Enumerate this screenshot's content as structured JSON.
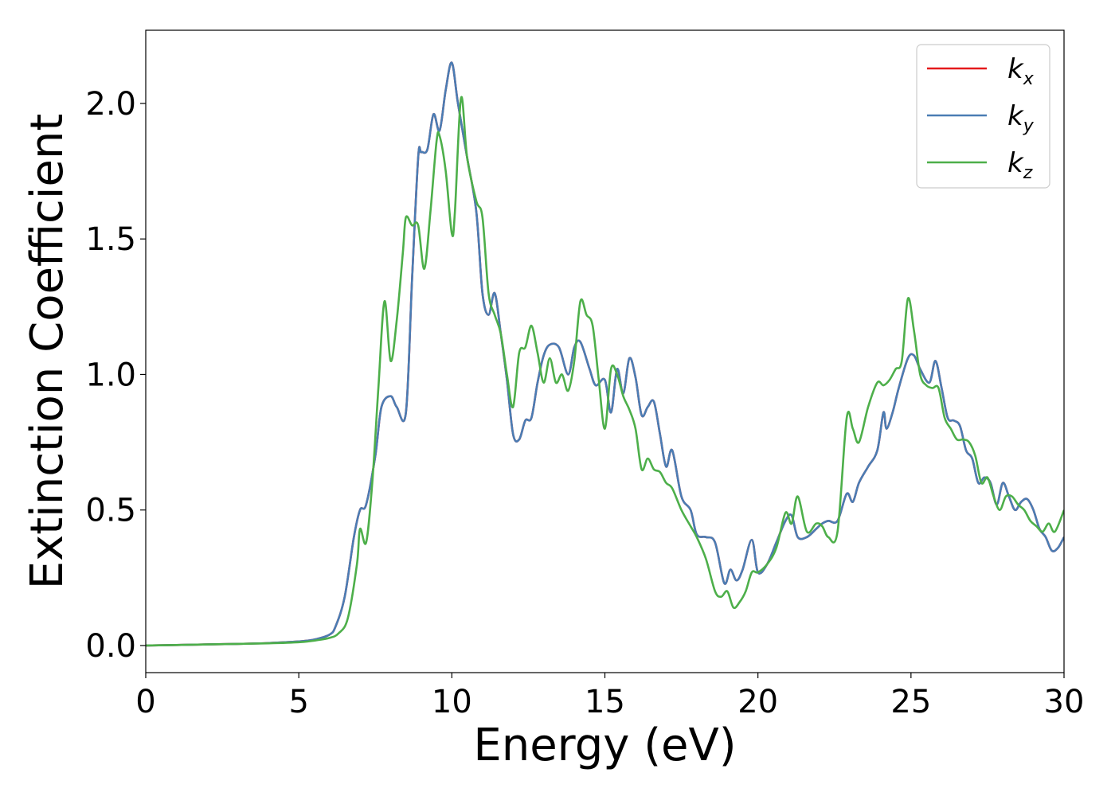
{
  "chart_data": {
    "type": "line",
    "xlabel": "Energy (eV)",
    "ylabel": "Extinction Coefficient",
    "xlim": [
      0,
      30
    ],
    "ylim": [
      -0.1,
      2.27
    ],
    "xticks": [
      0,
      5,
      10,
      15,
      20,
      25,
      30
    ],
    "yticks": [
      0.0,
      0.5,
      1.0,
      1.5,
      2.0
    ],
    "xtick_labels": [
      "0",
      "5",
      "10",
      "15",
      "20",
      "25",
      "30"
    ],
    "ytick_labels": [
      "0.0",
      "0.5",
      "1.0",
      "1.5",
      "2.0"
    ],
    "grid": false,
    "legend_position": "top-right",
    "series": [
      {
        "name": "kx",
        "legend_base": "k",
        "legend_sub": "x",
        "color": "#e41a1c",
        "x": [
          0,
          1,
          2,
          3,
          4,
          5,
          5.5,
          6,
          6.2,
          6.5,
          6.8,
          7.0,
          7.2,
          7.5,
          7.7,
          8.0,
          8.2,
          8.5,
          8.7,
          8.9,
          9.0,
          9.2,
          9.4,
          9.6,
          9.8,
          10.0,
          10.2,
          10.5,
          10.8,
          11.0,
          11.2,
          11.4,
          11.6,
          11.8,
          12.0,
          12.2,
          12.4,
          12.6,
          12.8,
          13.0,
          13.2,
          13.5,
          13.8,
          14.0,
          14.2,
          14.5,
          14.7,
          15.0,
          15.2,
          15.4,
          15.6,
          15.8,
          16.0,
          16.2,
          16.4,
          16.6,
          16.8,
          17.0,
          17.2,
          17.5,
          17.8,
          18.0,
          18.3,
          18.6,
          18.9,
          19.1,
          19.3,
          19.5,
          19.8,
          20.0,
          20.3,
          20.6,
          20.9,
          21.1,
          21.3,
          21.6,
          21.9,
          22.1,
          22.3,
          22.6,
          22.9,
          23.1,
          23.3,
          23.6,
          23.9,
          24.1,
          24.2,
          24.4,
          24.6,
          24.9,
          25.1,
          25.3,
          25.6,
          25.8,
          26.0,
          26.2,
          26.4,
          26.6,
          26.8,
          27.0,
          27.2,
          27.4,
          27.6,
          27.8,
          28.0,
          28.2,
          28.4,
          28.6,
          28.8,
          29.0,
          29.2,
          29.4,
          29.6,
          29.8,
          30.0
        ],
        "y": [
          0.0,
          0.002,
          0.004,
          0.006,
          0.009,
          0.015,
          0.022,
          0.04,
          0.07,
          0.18,
          0.4,
          0.5,
          0.52,
          0.7,
          0.88,
          0.92,
          0.88,
          0.86,
          1.35,
          1.8,
          1.82,
          1.83,
          1.96,
          1.9,
          2.05,
          2.15,
          2.0,
          1.8,
          1.6,
          1.3,
          1.22,
          1.3,
          1.15,
          0.98,
          0.78,
          0.76,
          0.83,
          0.84,
          0.97,
          1.07,
          1.11,
          1.1,
          1.0,
          1.1,
          1.12,
          1.02,
          0.96,
          0.98,
          0.86,
          1.02,
          0.93,
          1.06,
          0.99,
          0.85,
          0.88,
          0.9,
          0.78,
          0.66,
          0.72,
          0.55,
          0.5,
          0.41,
          0.4,
          0.38,
          0.23,
          0.28,
          0.24,
          0.28,
          0.39,
          0.27,
          0.3,
          0.38,
          0.46,
          0.48,
          0.4,
          0.4,
          0.43,
          0.45,
          0.46,
          0.46,
          0.56,
          0.53,
          0.6,
          0.66,
          0.72,
          0.86,
          0.8,
          0.86,
          0.95,
          1.06,
          1.07,
          1.02,
          0.97,
          1.05,
          0.95,
          0.84,
          0.83,
          0.81,
          0.72,
          0.69,
          0.6,
          0.62,
          0.6,
          0.52,
          0.6,
          0.55,
          0.5,
          0.53,
          0.54,
          0.5,
          0.43,
          0.4,
          0.35,
          0.36,
          0.4
        ]
      },
      {
        "name": "ky",
        "legend_base": "k",
        "legend_sub": "y",
        "color": "#4a7db4",
        "x": [
          0,
          1,
          2,
          3,
          4,
          5,
          5.5,
          6,
          6.2,
          6.5,
          6.8,
          7.0,
          7.2,
          7.5,
          7.7,
          8.0,
          8.2,
          8.5,
          8.7,
          8.9,
          9.0,
          9.2,
          9.4,
          9.6,
          9.8,
          10.0,
          10.2,
          10.5,
          10.8,
          11.0,
          11.2,
          11.4,
          11.6,
          11.8,
          12.0,
          12.2,
          12.4,
          12.6,
          12.8,
          13.0,
          13.2,
          13.5,
          13.8,
          14.0,
          14.2,
          14.5,
          14.7,
          15.0,
          15.2,
          15.4,
          15.6,
          15.8,
          16.0,
          16.2,
          16.4,
          16.6,
          16.8,
          17.0,
          17.2,
          17.5,
          17.8,
          18.0,
          18.3,
          18.6,
          18.9,
          19.1,
          19.3,
          19.5,
          19.8,
          20.0,
          20.3,
          20.6,
          20.9,
          21.1,
          21.3,
          21.6,
          21.9,
          22.1,
          22.3,
          22.6,
          22.9,
          23.1,
          23.3,
          23.6,
          23.9,
          24.1,
          24.2,
          24.4,
          24.6,
          24.9,
          25.1,
          25.3,
          25.6,
          25.8,
          26.0,
          26.2,
          26.4,
          26.6,
          26.8,
          27.0,
          27.2,
          27.4,
          27.6,
          27.8,
          28.0,
          28.2,
          28.4,
          28.6,
          28.8,
          29.0,
          29.2,
          29.4,
          29.6,
          29.8,
          30.0
        ],
        "y": [
          0.0,
          0.002,
          0.004,
          0.006,
          0.009,
          0.015,
          0.022,
          0.04,
          0.07,
          0.18,
          0.4,
          0.5,
          0.52,
          0.7,
          0.88,
          0.92,
          0.88,
          0.86,
          1.35,
          1.8,
          1.82,
          1.83,
          1.96,
          1.9,
          2.05,
          2.15,
          2.0,
          1.8,
          1.6,
          1.3,
          1.22,
          1.3,
          1.15,
          0.98,
          0.78,
          0.76,
          0.83,
          0.84,
          0.97,
          1.07,
          1.11,
          1.1,
          1.0,
          1.1,
          1.12,
          1.02,
          0.96,
          0.98,
          0.86,
          1.02,
          0.93,
          1.06,
          0.99,
          0.85,
          0.88,
          0.9,
          0.78,
          0.66,
          0.72,
          0.55,
          0.5,
          0.41,
          0.4,
          0.38,
          0.23,
          0.28,
          0.24,
          0.28,
          0.39,
          0.27,
          0.3,
          0.38,
          0.46,
          0.48,
          0.4,
          0.4,
          0.43,
          0.45,
          0.46,
          0.46,
          0.56,
          0.53,
          0.6,
          0.66,
          0.72,
          0.86,
          0.8,
          0.86,
          0.95,
          1.06,
          1.07,
          1.02,
          0.97,
          1.05,
          0.95,
          0.84,
          0.83,
          0.81,
          0.72,
          0.69,
          0.6,
          0.62,
          0.6,
          0.52,
          0.6,
          0.55,
          0.5,
          0.53,
          0.54,
          0.5,
          0.43,
          0.4,
          0.35,
          0.36,
          0.4
        ]
      },
      {
        "name": "kz",
        "legend_base": "k",
        "legend_sub": "z",
        "color": "#4daf4a",
        "x": [
          0,
          1,
          2,
          3,
          4,
          5,
          5.5,
          6,
          6.3,
          6.6,
          6.9,
          7.0,
          7.2,
          7.4,
          7.6,
          7.8,
          8.0,
          8.2,
          8.4,
          8.5,
          8.7,
          8.9,
          9.1,
          9.3,
          9.5,
          9.6,
          9.8,
          10.0,
          10.1,
          10.3,
          10.5,
          10.8,
          11.0,
          11.2,
          11.4,
          11.6,
          11.8,
          12.0,
          12.2,
          12.4,
          12.6,
          12.8,
          13.0,
          13.2,
          13.4,
          13.6,
          13.8,
          14.0,
          14.2,
          14.4,
          14.6,
          14.8,
          15.0,
          15.2,
          15.4,
          15.6,
          15.8,
          16.0,
          16.2,
          16.4,
          16.6,
          16.8,
          17.0,
          17.2,
          17.5,
          17.8,
          18.0,
          18.3,
          18.6,
          18.8,
          19.0,
          19.2,
          19.4,
          19.6,
          19.8,
          20.0,
          20.3,
          20.6,
          20.9,
          21.1,
          21.3,
          21.6,
          21.9,
          22.1,
          22.3,
          22.6,
          22.9,
          23.1,
          23.3,
          23.6,
          23.9,
          24.1,
          24.3,
          24.5,
          24.7,
          24.9,
          25.1,
          25.3,
          25.5,
          25.7,
          25.9,
          26.1,
          26.3,
          26.5,
          26.7,
          26.9,
          27.1,
          27.3,
          27.5,
          27.7,
          27.9,
          28.1,
          28.3,
          28.5,
          28.7,
          28.9,
          29.1,
          29.3,
          29.5,
          29.7,
          30.0
        ],
        "y": [
          0.0,
          0.002,
          0.004,
          0.006,
          0.008,
          0.012,
          0.018,
          0.028,
          0.045,
          0.1,
          0.3,
          0.43,
          0.38,
          0.6,
          0.95,
          1.27,
          1.05,
          1.2,
          1.45,
          1.58,
          1.55,
          1.55,
          1.39,
          1.6,
          1.86,
          1.88,
          1.75,
          1.52,
          1.6,
          2.02,
          1.8,
          1.64,
          1.58,
          1.3,
          1.22,
          1.15,
          1.0,
          0.88,
          1.08,
          1.1,
          1.18,
          1.08,
          0.97,
          1.06,
          0.97,
          1.0,
          0.94,
          1.05,
          1.27,
          1.22,
          1.18,
          0.98,
          0.8,
          1.02,
          1.0,
          0.92,
          0.87,
          0.8,
          0.65,
          0.69,
          0.65,
          0.64,
          0.6,
          0.58,
          0.5,
          0.44,
          0.4,
          0.32,
          0.2,
          0.18,
          0.2,
          0.14,
          0.16,
          0.2,
          0.27,
          0.27,
          0.3,
          0.36,
          0.49,
          0.45,
          0.55,
          0.42,
          0.45,
          0.44,
          0.4,
          0.42,
          0.84,
          0.8,
          0.75,
          0.88,
          0.97,
          0.96,
          0.98,
          1.02,
          1.05,
          1.28,
          1.16,
          1.0,
          0.96,
          0.95,
          0.95,
          0.84,
          0.8,
          0.76,
          0.76,
          0.75,
          0.7,
          0.6,
          0.62,
          0.55,
          0.5,
          0.55,
          0.55,
          0.52,
          0.5,
          0.46,
          0.44,
          0.42,
          0.45,
          0.42,
          0.5
        ]
      }
    ]
  }
}
